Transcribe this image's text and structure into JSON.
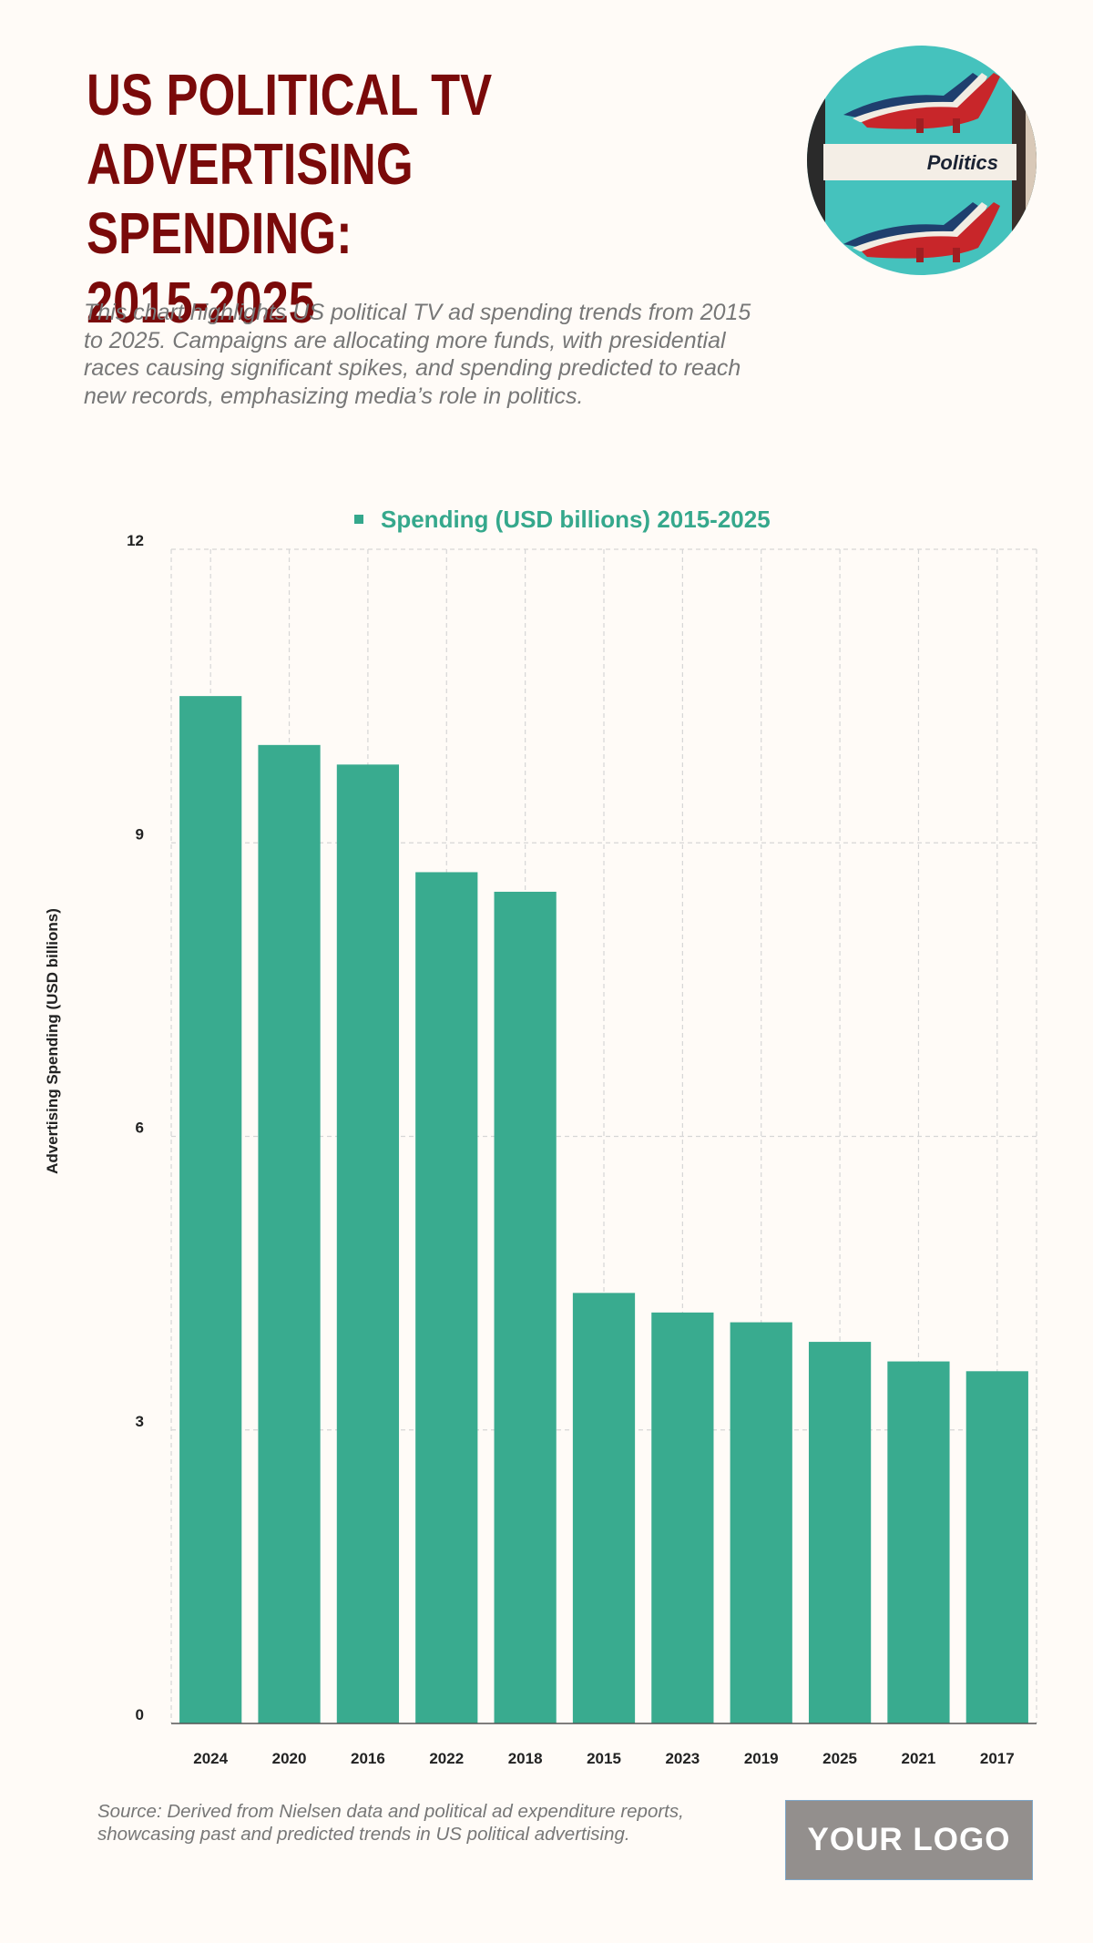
{
  "header": {
    "title_lines": [
      "US POLITICAL TV",
      "ADVERTISING SPENDING:",
      "2015-2025"
    ],
    "subtitle": "This chart highlights US political TV ad spending trends from 2015 to 2025. Campaigns are allocating more funds, with presidential races causing significant spikes, and spending predicted to reach new records, emphasizing media’s role in politics.",
    "hero_image": {
      "icon": "politics-dinosaurs-photo",
      "caption": "Politics"
    }
  },
  "colors": {
    "title": "#7a0a0a",
    "bar": "#35a98d",
    "legend": "#35a88c",
    "grid": "#d6d6d6",
    "axis": "#555555",
    "background": "#fffbf7"
  },
  "chart_data": {
    "type": "bar",
    "title": "",
    "legend": {
      "position": "top-center",
      "entries": [
        "Spending (USD billions) 2015-2025"
      ]
    },
    "categories": [
      "2024",
      "2020",
      "2016",
      "2022",
      "2018",
      "2015",
      "2023",
      "2019",
      "2025",
      "2021",
      "2017"
    ],
    "series": [
      {
        "name": "Spending (USD billions) 2015-2025",
        "values": [
          10.5,
          10.0,
          9.8,
          8.7,
          8.5,
          4.4,
          4.2,
          4.1,
          3.9,
          3.7,
          3.6
        ]
      }
    ],
    "xlabel": "",
    "ylabel": "Advertising Spending (USD billions)",
    "ylim": [
      0,
      12
    ],
    "yticks": [
      0,
      3,
      6,
      9,
      12
    ],
    "grid": true
  },
  "footer": {
    "source": "Source: Derived from Nielsen data and political ad expenditure reports, showcasing past and predicted trends in US political advertising.",
    "logo_label": "YOUR LOGO"
  }
}
